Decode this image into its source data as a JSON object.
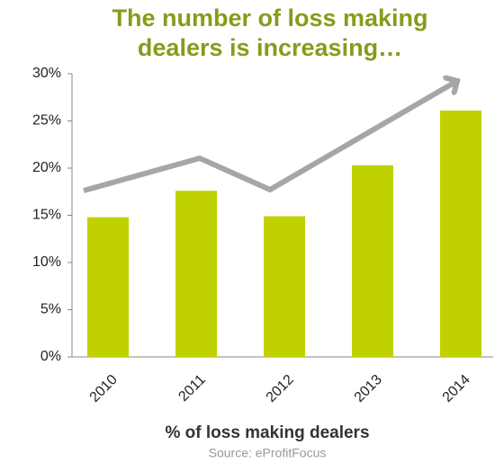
{
  "chart_data": {
    "type": "bar",
    "title": "The number of loss making dealers is increasing…",
    "x_label": "% of loss making dealers",
    "source": "Source: eProfitFocus",
    "categories": [
      "2010",
      "2011",
      "2012",
      "2013",
      "2014"
    ],
    "values": [
      14.8,
      17.6,
      14.9,
      20.3,
      26.1
    ],
    "color": "#bfd200",
    "ylim": [
      0,
      30
    ],
    "yticks": [
      {
        "value": 0,
        "label": "0%"
      },
      {
        "value": 5,
        "label": "5%"
      },
      {
        "value": 10,
        "label": "10%"
      },
      {
        "value": 15,
        "label": "15%"
      },
      {
        "value": 20,
        "label": "20%"
      },
      {
        "value": 25,
        "label": "25%"
      },
      {
        "value": 30,
        "label": "30%"
      }
    ],
    "grid": false
  }
}
